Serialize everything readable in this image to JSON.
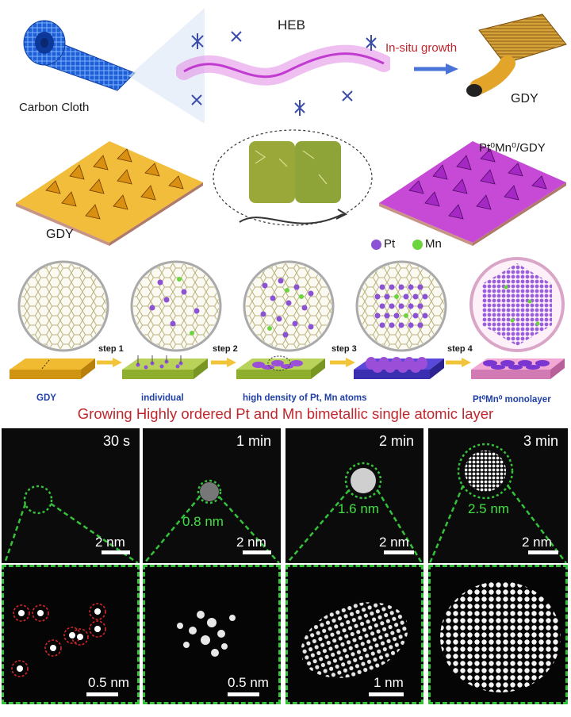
{
  "top": {
    "heb_label": "HEB",
    "carbon_label": "Carbon Cloth",
    "insitu_label": "In-situ growth",
    "gdy_label": "GDY"
  },
  "middle": {
    "gdy_label": "GDY",
    "ptmn_label": "Pt⁰Mn⁰/GDY"
  },
  "legend": {
    "pt_label": "Pt",
    "mn_label": "Mn",
    "pt_color": "#8c52d6",
    "mn_color": "#6cd43c"
  },
  "steps": {
    "step1": "step 1",
    "step2": "step 2",
    "step3": "step 3",
    "step4": "step 4",
    "gdy": "GDY",
    "individual": "individual",
    "high_density": "high density of Pt, Mn atoms",
    "monolayer": "Pt⁰Mn⁰ monolayer"
  },
  "headline": "Growing Highly ordered Pt and Mn bimetallic single atomic layer",
  "stem": [
    {
      "time": "30 s",
      "scale": "2 nm",
      "size": "",
      "zoom_scale": "0.5 nm"
    },
    {
      "time": "1 min",
      "scale": "2 nm",
      "size": "0.8 nm",
      "zoom_scale": "0.5 nm"
    },
    {
      "time": "2 min",
      "scale": "2 nm",
      "size": "1.6 nm",
      "zoom_scale": "1 nm"
    },
    {
      "time": "3 min",
      "scale": "2 nm",
      "size": "2.5 nm",
      "zoom_scale": ""
    }
  ],
  "colors": {
    "headline": "#c0272d",
    "insitu": "#c0272d",
    "step_label": "#1f3fa6",
    "dashed_green": "#35c23a",
    "gdy_gold": "#e8a820",
    "ptmn_purple": "#b23fd6",
    "cloth_blue": "#1f63d8"
  }
}
